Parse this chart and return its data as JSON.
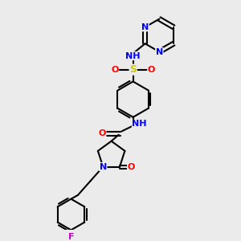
{
  "background_color": "#ebebeb",
  "bond_color": "#000000",
  "atom_colors": {
    "N": "#0000ff",
    "O": "#ff0000",
    "S": "#cccc00",
    "F": "#cc00cc",
    "C": "#000000",
    "H": "#555555"
  },
  "font_size": 8,
  "lw": 1.5
}
